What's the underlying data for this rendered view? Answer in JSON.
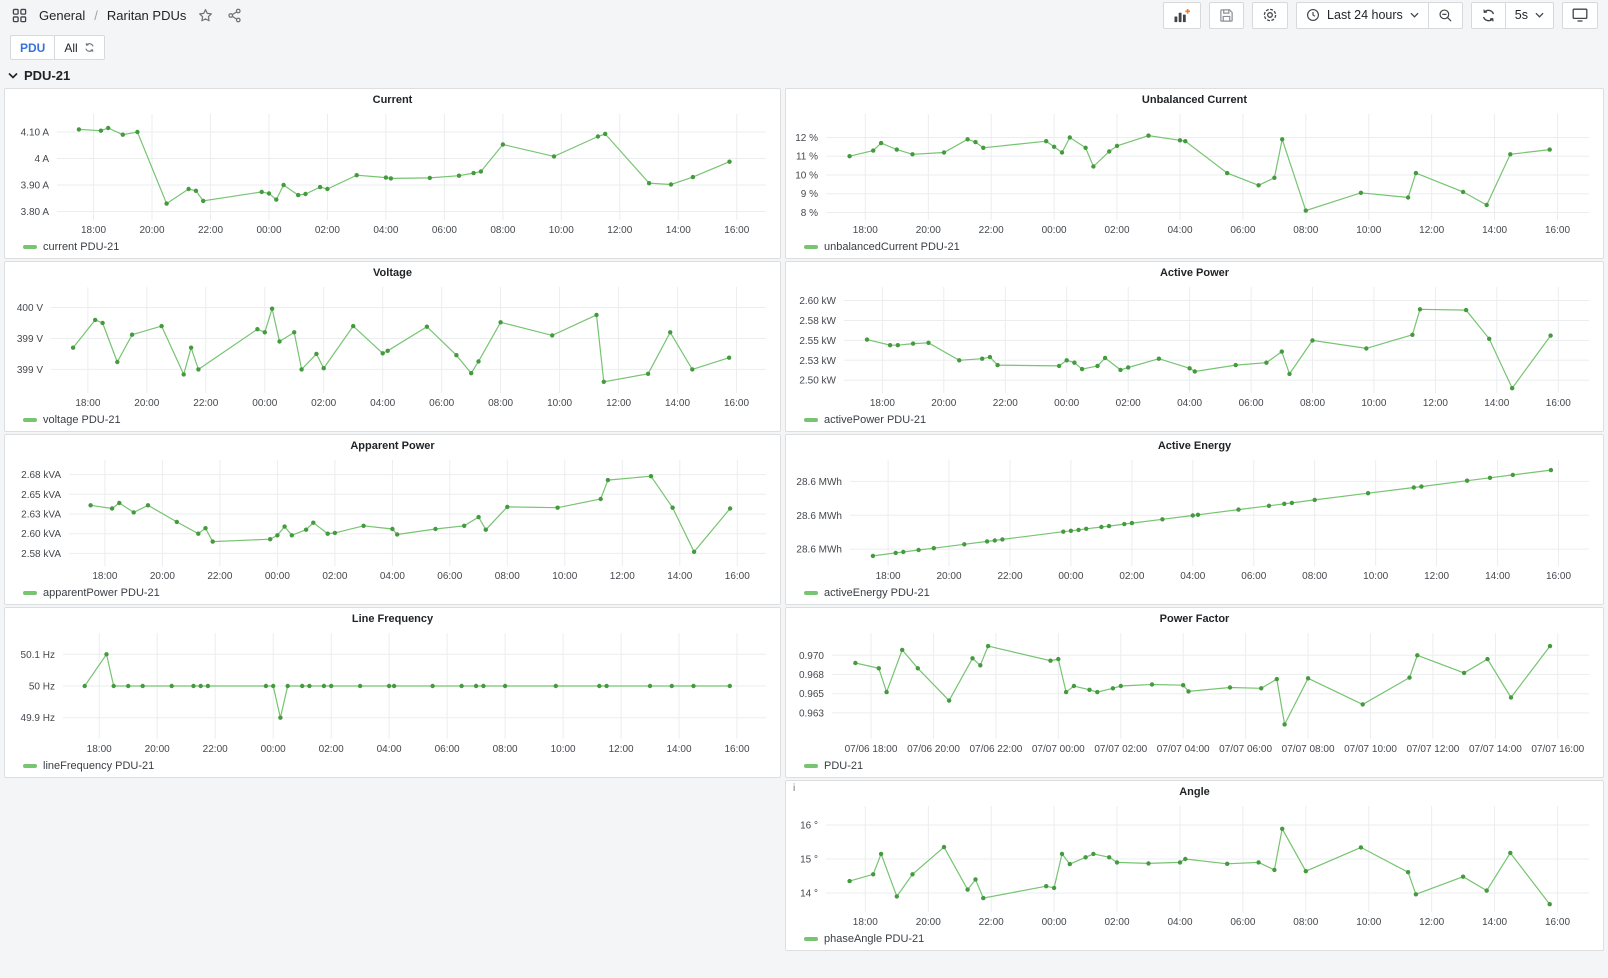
{
  "nav": {
    "breadcrumb": [
      "General",
      "Raritan PDUs"
    ],
    "separator": "/"
  },
  "toolbar": {
    "time_range": "Last 24 hours",
    "interval": "5s",
    "icons": [
      "apps-icon",
      "star-icon",
      "share-icon",
      "add-panel-icon",
      "save-icon",
      "gear-icon",
      "clock-icon",
      "caret-down-icon",
      "zoom-out-icon",
      "refresh-icon",
      "tv-icon"
    ]
  },
  "variable_bar": {
    "label": "PDU",
    "value": "All"
  },
  "row": {
    "title": "PDU-21"
  },
  "colors": {
    "green_line": "#77c471",
    "green_point": "#459a40",
    "accent_blue": "#3871dc",
    "accent_orange": "#ef7b25",
    "grid_line": "#ebedef",
    "axis_text": "#44484d",
    "panel_border": "#dcdee0",
    "page_bg": "#f4f5f6"
  },
  "time_points": [
    17.5,
    18.25,
    18.5,
    19,
    19.5,
    20.5,
    21.25,
    21.5,
    21.75,
    23.75,
    24,
    24.25,
    24.5,
    25,
    25.25,
    25.75,
    26,
    27,
    28,
    28.17,
    29.5,
    30.5,
    31,
    31.25,
    32,
    33.75,
    35.25,
    35.5,
    37,
    37.75,
    38.5,
    39.75
  ],
  "x_tick_hours": [
    18,
    20,
    22,
    24,
    26,
    28,
    30,
    32,
    34,
    36,
    38,
    40
  ],
  "chart_data": [
    {
      "type": "line",
      "title": "Current",
      "series": [
        {
          "name": "current PDU-21",
          "values": [
            4.11,
            4.105,
            4.115,
            4.09,
            4.1,
            3.83,
            3.885,
            3.878,
            3.84,
            3.874,
            3.868,
            3.845,
            3.9,
            3.862,
            3.866,
            3.892,
            3.885,
            3.937,
            3.928,
            3.925,
            3.927,
            3.935,
            3.945,
            3.951,
            4.053,
            4.008,
            4.083,
            4.093,
            3.907,
            3.902,
            3.93,
            3.988
          ]
        }
      ],
      "y_ticks": [
        4.1,
        4,
        3.9,
        3.8
      ],
      "y_tick_labels": [
        "4.10 A",
        "4 A",
        "3.90 A",
        "3.80 A"
      ],
      "ylim": [
        3.768,
        4.168
      ],
      "x_tick_labels": [
        "18:00",
        "20:00",
        "22:00",
        "00:00",
        "02:00",
        "04:00",
        "06:00",
        "08:00",
        "10:00",
        "12:00",
        "14:00",
        "16:00"
      ]
    },
    {
      "type": "line",
      "title": "Unbalanced Current",
      "series": [
        {
          "name": "unbalancedCurrent PDU-21",
          "values": [
            11,
            11.3,
            11.7,
            11.35,
            11.1,
            11.2,
            11.9,
            11.75,
            11.45,
            11.8,
            11.5,
            11.2,
            12,
            11.45,
            10.45,
            11.25,
            11.55,
            12.1,
            11.85,
            11.8,
            10.1,
            9.45,
            9.85,
            11.9,
            8.1,
            9.05,
            8.8,
            10.1,
            9.1,
            8.4,
            11.1,
            11.35
          ]
        }
      ],
      "y_ticks": [
        12,
        11,
        10,
        9,
        8
      ],
      "y_tick_labels": [
        "12 %",
        "11 %",
        "10 %",
        "9 %",
        "8 %"
      ],
      "ylim": [
        7.6,
        13.25
      ],
      "x_tick_labels": [
        "18:00",
        "20:00",
        "22:00",
        "00:00",
        "02:00",
        "04:00",
        "06:00",
        "08:00",
        "10:00",
        "12:00",
        "14:00",
        "16:00"
      ]
    },
    {
      "type": "line",
      "title": "Voltage",
      "series": [
        {
          "name": "voltage PDU-21",
          "values": [
            399.35,
            399.8,
            399.75,
            399.12,
            399.56,
            399.7,
            398.92,
            399.35,
            399,
            399.65,
            399.6,
            399.98,
            399.45,
            399.6,
            399,
            399.25,
            399.02,
            399.7,
            399.26,
            399.3,
            399.69,
            399.23,
            398.94,
            399.13,
            399.76,
            399.55,
            399.88,
            398.8,
            398.93,
            399.6,
            399,
            399.19
          ]
        }
      ],
      "y_ticks": [
        400,
        399.5,
        399
      ],
      "y_tick_labels": [
        "400 V",
        "399 V",
        "399 V"
      ],
      "ylim": [
        398.62,
        400.33
      ],
      "x_tick_labels": [
        "18:00",
        "20:00",
        "22:00",
        "00:00",
        "02:00",
        "04:00",
        "06:00",
        "08:00",
        "10:00",
        "12:00",
        "14:00",
        "16:00"
      ]
    },
    {
      "type": "line",
      "title": "Active Power",
      "series": [
        {
          "name": "activePower PDU-21",
          "values": [
            2.551,
            2.544,
            2.544,
            2.546,
            2.547,
            2.525,
            2.527,
            2.529,
            2.519,
            2.518,
            2.525,
            2.522,
            2.514,
            2.518,
            2.528,
            2.513,
            2.516,
            2.527,
            2.515,
            2.511,
            2.519,
            2.522,
            2.536,
            2.508,
            2.55,
            2.54,
            2.557,
            2.589,
            2.588,
            2.552,
            2.49,
            2.556
          ]
        }
      ],
      "y_ticks": [
        2.6,
        2.575,
        2.55,
        2.525,
        2.5
      ],
      "y_tick_labels": [
        "2.60 kW",
        "2.58 kW",
        "2.55 kW",
        "2.53 kW",
        "2.50 kW"
      ],
      "ylim": [
        2.484,
        2.617
      ],
      "x_tick_labels": [
        "18:00",
        "20:00",
        "22:00",
        "00:00",
        "02:00",
        "04:00",
        "06:00",
        "08:00",
        "10:00",
        "12:00",
        "14:00",
        "16:00"
      ]
    },
    {
      "type": "line",
      "title": "Apparent Power",
      "series": [
        {
          "name": "apparentPower PDU-21",
          "values": [
            2.636,
            2.632,
            2.639,
            2.627,
            2.636,
            2.615,
            2.6,
            2.607,
            2.59,
            2.593,
            2.598,
            2.609,
            2.598,
            2.605,
            2.614,
            2.6,
            2.601,
            2.61,
            2.606,
            2.599,
            2.606,
            2.61,
            2.621,
            2.605,
            2.634,
            2.633,
            2.644,
            2.668,
            2.673,
            2.633,
            2.577,
            2.632
          ]
        }
      ],
      "y_ticks": [
        2.675,
        2.65,
        2.625,
        2.6,
        2.575
      ],
      "y_tick_labels": [
        "2.68 kVA",
        "2.65 kVA",
        "2.63 kVA",
        "2.60 kVA",
        "2.58 kVA"
      ],
      "ylim": [
        2.559,
        2.6935
      ],
      "x_tick_labels": [
        "18:00",
        "20:00",
        "22:00",
        "00:00",
        "02:00",
        "04:00",
        "06:00",
        "08:00",
        "10:00",
        "12:00",
        "14:00",
        "16:00"
      ]
    },
    {
      "type": "line",
      "title": "Active Energy",
      "series": [
        {
          "name": "activeEnergy PDU-21",
          "values": [
            28.592,
            28.5933,
            28.5937,
            28.5946,
            28.5954,
            28.5971,
            28.5984,
            28.5988,
            28.5993,
            28.6027,
            28.6031,
            28.6035,
            28.604,
            28.6048,
            28.6052,
            28.6061,
            28.6065,
            28.6082,
            28.6099,
            28.6102,
            28.6125,
            28.6142,
            28.6151,
            28.6155,
            28.6168,
            28.6198,
            28.6223,
            28.6227,
            28.6253,
            28.6266,
            28.6279,
            28.63
          ]
        }
      ],
      "y_ticks": [
        28.625,
        28.61,
        28.595
      ],
      "y_tick_labels": [
        "28.6 MWh",
        "28.6 MWh",
        "28.6 MWh"
      ],
      "ylim": [
        28.5875,
        28.6345
      ],
      "x_tick_labels": [
        "18:00",
        "20:00",
        "22:00",
        "00:00",
        "02:00",
        "04:00",
        "06:00",
        "08:00",
        "10:00",
        "12:00",
        "14:00",
        "16:00"
      ]
    },
    {
      "type": "line",
      "title": "Line Frequency",
      "series": [
        {
          "name": "lineFrequency PDU-21",
          "values": [
            50,
            50.1,
            50,
            50,
            50,
            50,
            50,
            50,
            50,
            50,
            50,
            49.9,
            50,
            50,
            50,
            50,
            50,
            50,
            50,
            50,
            50,
            50,
            50,
            50,
            50,
            50,
            50,
            50,
            50,
            50,
            50,
            50
          ]
        }
      ],
      "y_ticks": [
        50.1,
        50,
        49.9
      ],
      "y_tick_labels": [
        "50.1 Hz",
        "50 Hz",
        "49.9 Hz"
      ],
      "ylim": [
        49.833,
        50.167
      ],
      "x_tick_labels": [
        "18:00",
        "20:00",
        "22:00",
        "00:00",
        "02:00",
        "04:00",
        "06:00",
        "08:00",
        "10:00",
        "12:00",
        "14:00",
        "16:00"
      ]
    },
    {
      "type": "line",
      "title": "Power Factor",
      "series": [
        {
          "name": "PDU-21",
          "values": [
            0.969,
            0.9683,
            0.9652,
            0.9707,
            0.9683,
            0.9641,
            0.9696,
            0.9687,
            0.9712,
            0.9693,
            0.9695,
            0.9652,
            0.966,
            0.9655,
            0.9652,
            0.9657,
            0.966,
            0.9662,
            0.9661,
            0.9653,
            0.9658,
            0.9657,
            0.9669,
            0.961,
            0.967,
            0.9636,
            0.9671,
            0.97,
            0.9677,
            0.9695,
            0.9645,
            0.9712
          ]
        }
      ],
      "y_ticks": [
        0.97,
        0.9675,
        0.965,
        0.9625
      ],
      "y_tick_labels": [
        "0.970",
        "0.968",
        "0.965",
        "0.963"
      ],
      "ylim": [
        0.9591,
        0.9729
      ],
      "x_tick_labels": [
        "07/06 18:00",
        "07/06 20:00",
        "07/06 22:00",
        "07/07 00:00",
        "07/07 02:00",
        "07/07 04:00",
        "07/07 06:00",
        "07/07 08:00",
        "07/07 10:00",
        "07/07 12:00",
        "07/07 14:00",
        "07/07 16:00"
      ]
    },
    {
      "type": "line",
      "title": "Angle",
      "info_icon": "i",
      "series": [
        {
          "name": "phaseAngle PDU-21",
          "values": [
            14.35,
            14.55,
            15.15,
            13.9,
            14.55,
            15.35,
            14.1,
            14.4,
            13.85,
            14.2,
            14.15,
            15.15,
            14.85,
            15.05,
            15.15,
            15.05,
            14.9,
            14.87,
            14.9,
            15,
            14.86,
            14.9,
            14.68,
            15.89,
            14.64,
            15.34,
            14.61,
            13.96,
            14.48,
            14.07,
            15.18,
            13.67
          ]
        }
      ],
      "y_ticks": [
        16,
        15,
        14
      ],
      "y_tick_labels": [
        "16 °",
        "15 °",
        "14 °"
      ],
      "ylim": [
        13.44,
        16.56
      ],
      "x_tick_labels": [
        "18:00",
        "20:00",
        "22:00",
        "00:00",
        "02:00",
        "04:00",
        "06:00",
        "08:00",
        "10:00",
        "12:00",
        "14:00",
        "16:00"
      ]
    }
  ]
}
